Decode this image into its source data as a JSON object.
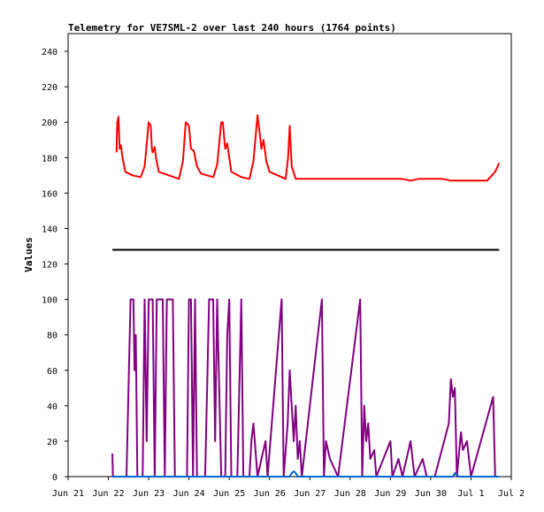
{
  "chart_data": {
    "type": "line",
    "title": "Telemetry for VE7SML-2 over last 240 hours (1764 points)",
    "xlabel": "",
    "ylabel": "Values",
    "ylim": [
      0,
      250
    ],
    "xlim": [
      0,
      11
    ],
    "y_ticks": [
      0,
      20,
      40,
      60,
      80,
      100,
      120,
      140,
      160,
      180,
      200,
      220,
      240
    ],
    "x_tick_labels": [
      "Jun 21",
      "Jun 22",
      "Jun 23",
      "Jun 24",
      "Jun 25",
      "Jun 26",
      "Jun 27",
      "Jun 28",
      "Jun 29",
      "Jun 30",
      "Jul 1",
      "Jul 2"
    ],
    "grid": false,
    "legend": "none",
    "colors": {
      "series1": "#ff0000",
      "series2": "#000000",
      "series3": "#800080",
      "series4": "#0066cc"
    },
    "series": [
      {
        "color": "#ff0000",
        "points": [
          [
            1.2,
            183
          ],
          [
            1.22,
            200
          ],
          [
            1.25,
            203
          ],
          [
            1.28,
            185
          ],
          [
            1.31,
            187
          ],
          [
            1.35,
            180
          ],
          [
            1.42,
            172
          ],
          [
            1.6,
            170
          ],
          [
            1.8,
            169
          ],
          [
            1.9,
            175
          ],
          [
            2.0,
            200
          ],
          [
            2.05,
            198
          ],
          [
            2.08,
            185
          ],
          [
            2.1,
            183
          ],
          [
            2.15,
            186
          ],
          [
            2.18,
            180
          ],
          [
            2.25,
            172
          ],
          [
            2.5,
            170
          ],
          [
            2.75,
            168
          ],
          [
            2.85,
            178
          ],
          [
            2.92,
            200
          ],
          [
            3.0,
            198
          ],
          [
            3.05,
            185
          ],
          [
            3.12,
            184
          ],
          [
            3.2,
            175
          ],
          [
            3.3,
            171
          ],
          [
            3.6,
            169
          ],
          [
            3.7,
            176
          ],
          [
            3.8,
            200
          ],
          [
            3.84,
            200
          ],
          [
            3.9,
            185
          ],
          [
            3.95,
            188
          ],
          [
            4.0,
            180
          ],
          [
            4.05,
            172
          ],
          [
            4.3,
            169
          ],
          [
            4.5,
            168
          ],
          [
            4.6,
            178
          ],
          [
            4.7,
            204
          ],
          [
            4.75,
            195
          ],
          [
            4.8,
            185
          ],
          [
            4.85,
            190
          ],
          [
            4.92,
            178
          ],
          [
            5.0,
            172
          ],
          [
            5.3,
            169
          ],
          [
            5.4,
            168
          ],
          [
            5.46,
            180
          ],
          [
            5.5,
            198
          ],
          [
            5.55,
            175
          ],
          [
            5.65,
            168
          ],
          [
            5.8,
            168
          ],
          [
            6.5,
            168
          ],
          [
            7.5,
            168
          ],
          [
            8.3,
            168
          ],
          [
            8.5,
            167
          ],
          [
            8.7,
            168
          ],
          [
            9.3,
            168
          ],
          [
            9.5,
            167
          ],
          [
            10.4,
            167
          ],
          [
            10.6,
            172
          ],
          [
            10.7,
            177
          ]
        ]
      },
      {
        "color": "#000000",
        "points": [
          [
            1.1,
            128
          ],
          [
            10.7,
            128
          ]
        ]
      },
      {
        "color": "#800080",
        "points": [
          [
            1.1,
            13
          ],
          [
            1.11,
            0
          ],
          [
            1.45,
            0
          ],
          [
            1.55,
            100
          ],
          [
            1.62,
            100
          ],
          [
            1.65,
            60
          ],
          [
            1.68,
            80
          ],
          [
            1.72,
            0
          ],
          [
            1.85,
            0
          ],
          [
            1.9,
            100
          ],
          [
            1.95,
            20
          ],
          [
            2.0,
            100
          ],
          [
            2.1,
            100
          ],
          [
            2.15,
            0
          ],
          [
            2.2,
            100
          ],
          [
            2.35,
            100
          ],
          [
            2.4,
            0
          ],
          [
            2.45,
            100
          ],
          [
            2.6,
            100
          ],
          [
            2.65,
            0
          ],
          [
            2.95,
            0
          ],
          [
            3.0,
            100
          ],
          [
            3.05,
            100
          ],
          [
            3.1,
            0
          ],
          [
            3.15,
            100
          ],
          [
            3.2,
            0
          ],
          [
            3.4,
            0
          ],
          [
            3.5,
            100
          ],
          [
            3.6,
            100
          ],
          [
            3.65,
            20
          ],
          [
            3.7,
            100
          ],
          [
            3.8,
            0
          ],
          [
            3.9,
            0
          ],
          [
            3.95,
            80
          ],
          [
            4.0,
            100
          ],
          [
            4.05,
            0
          ],
          [
            4.2,
            0
          ],
          [
            4.3,
            100
          ],
          [
            4.35,
            0
          ],
          [
            4.5,
            0
          ],
          [
            4.55,
            20
          ],
          [
            4.6,
            30
          ],
          [
            4.7,
            0
          ],
          [
            4.8,
            10
          ],
          [
            4.9,
            20
          ],
          [
            4.95,
            0
          ],
          [
            5.3,
            100
          ],
          [
            5.35,
            0
          ],
          [
            5.45,
            30
          ],
          [
            5.5,
            60
          ],
          [
            5.55,
            40
          ],
          [
            5.6,
            20
          ],
          [
            5.65,
            40
          ],
          [
            5.7,
            10
          ],
          [
            5.75,
            20
          ],
          [
            5.8,
            0
          ],
          [
            6.3,
            100
          ],
          [
            6.35,
            0
          ],
          [
            6.4,
            20
          ],
          [
            6.5,
            10
          ],
          [
            6.6,
            5
          ],
          [
            6.7,
            0
          ],
          [
            7.25,
            100
          ],
          [
            7.3,
            0
          ],
          [
            7.35,
            40
          ],
          [
            7.4,
            20
          ],
          [
            7.45,
            30
          ],
          [
            7.5,
            10
          ],
          [
            7.6,
            15
          ],
          [
            7.65,
            0
          ],
          [
            8.0,
            20
          ],
          [
            8.05,
            0
          ],
          [
            8.2,
            10
          ],
          [
            8.3,
            0
          ],
          [
            8.5,
            20
          ],
          [
            8.6,
            0
          ],
          [
            8.8,
            10
          ],
          [
            8.9,
            0
          ],
          [
            9.1,
            0
          ],
          [
            9.45,
            30
          ],
          [
            9.5,
            55
          ],
          [
            9.55,
            45
          ],
          [
            9.6,
            50
          ],
          [
            9.65,
            0
          ],
          [
            9.75,
            25
          ],
          [
            9.8,
            15
          ],
          [
            9.9,
            20
          ],
          [
            10.0,
            0
          ],
          [
            10.55,
            45
          ],
          [
            10.6,
            0
          ]
        ]
      },
      {
        "color": "#0066cc",
        "points": [
          [
            1.1,
            0
          ],
          [
            5.5,
            0
          ],
          [
            5.55,
            2
          ],
          [
            5.6,
            3
          ],
          [
            5.65,
            2
          ],
          [
            5.7,
            0
          ],
          [
            9.55,
            0
          ],
          [
            9.6,
            2
          ],
          [
            9.65,
            1
          ],
          [
            9.7,
            0
          ],
          [
            10.7,
            0
          ]
        ]
      }
    ]
  }
}
